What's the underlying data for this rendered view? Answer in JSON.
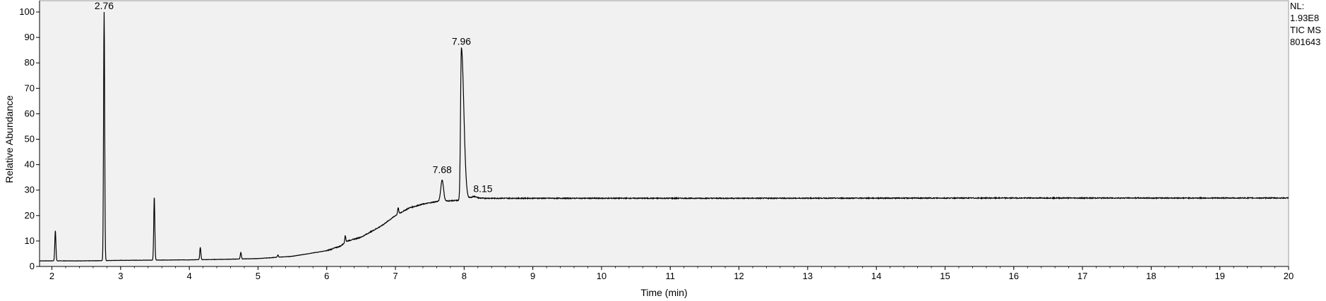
{
  "info": {
    "nl_label": "NL:",
    "nl_value": "1.93E8",
    "filter": "TIC  MS",
    "sample": "801643"
  },
  "chart_data": {
    "type": "line",
    "xlabel": "Time (min)",
    "ylabel": "Relative Abundance",
    "xlim": [
      1.82,
      20
    ],
    "ylim": [
      0,
      100
    ],
    "xticks": [
      2,
      3,
      4,
      5,
      6,
      7,
      8,
      9,
      10,
      11,
      12,
      13,
      14,
      15,
      16,
      17,
      18,
      19,
      20
    ],
    "yticks": [
      0,
      10,
      20,
      30,
      40,
      50,
      60,
      70,
      80,
      90,
      100
    ],
    "grid": false,
    "colors": {
      "trace": "#000000",
      "plot_bg": "#f1f1f1"
    },
    "baseline": [
      [
        1.82,
        2.2
      ],
      [
        2.5,
        2.2
      ],
      [
        3.0,
        2.4
      ],
      [
        3.5,
        2.5
      ],
      [
        4.0,
        2.6
      ],
      [
        4.5,
        2.8
      ],
      [
        5.0,
        3.1
      ],
      [
        5.5,
        4.0
      ],
      [
        6.0,
        6.2
      ],
      [
        6.2,
        8.0
      ],
      [
        6.3,
        10.0
      ],
      [
        6.5,
        11.5
      ],
      [
        6.8,
        16.0
      ],
      [
        7.0,
        20.0
      ],
      [
        7.2,
        23.0
      ],
      [
        7.4,
        24.5
      ],
      [
        7.6,
        25.5
      ],
      [
        7.8,
        25.8
      ],
      [
        7.95,
        26.0
      ],
      [
        8.1,
        27.0
      ],
      [
        8.3,
        26.8
      ],
      [
        9.0,
        26.8
      ],
      [
        12.0,
        26.8
      ],
      [
        16.0,
        26.9
      ],
      [
        20.0,
        26.9
      ]
    ],
    "peaks": [
      {
        "rt": 2.05,
        "height": 14.0,
        "label": ""
      },
      {
        "rt": 2.76,
        "height": 100.0,
        "label": "2.76"
      },
      {
        "rt": 3.49,
        "height": 27.0,
        "label": ""
      },
      {
        "rt": 4.16,
        "height": 7.5,
        "label": ""
      },
      {
        "rt": 4.75,
        "height": 5.5,
        "label": ""
      },
      {
        "rt": 5.29,
        "height": 4.5,
        "label": ""
      },
      {
        "rt": 6.27,
        "height": 12.0,
        "label": ""
      },
      {
        "rt": 7.04,
        "height": 23.0,
        "label": ""
      },
      {
        "rt": 7.68,
        "height": 34.0,
        "label": "7.68"
      },
      {
        "rt": 7.96,
        "height": 86.0,
        "label": "7.96"
      },
      {
        "rt": 8.15,
        "height": 27.5,
        "label": "8.15"
      }
    ]
  }
}
